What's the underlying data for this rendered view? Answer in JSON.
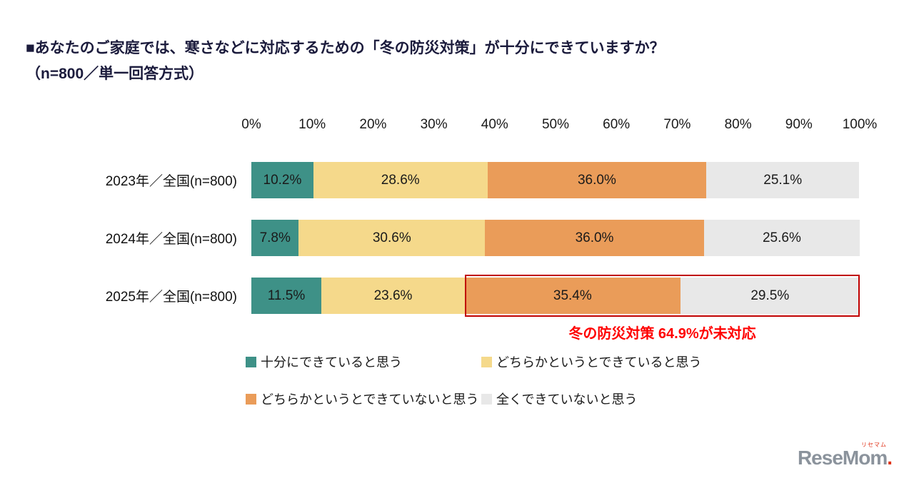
{
  "header": {
    "title": "■あなたのご家庭では、寒さなどに対応するための「冬の防災対策」が十分にできていますか？",
    "subtitle": "（n=800／単一回答方式）"
  },
  "chart_data": {
    "type": "bar",
    "stacked": true,
    "orientation": "horizontal",
    "xlim": [
      0,
      100
    ],
    "x_ticks": [
      "0%",
      "10%",
      "20%",
      "30%",
      "40%",
      "50%",
      "60%",
      "70%",
      "80%",
      "90%",
      "100%"
    ],
    "categories": [
      "2023年／全国(n=800)",
      "2024年／全国(n=800)",
      "2025年／全国(n=800)"
    ],
    "series": [
      {
        "name": "十分にできていると思う",
        "color": "#3e9187",
        "values": [
          10.2,
          7.8,
          11.5
        ]
      },
      {
        "name": "どちらかというとできていると思う",
        "color": "#f5d98b",
        "values": [
          28.6,
          30.6,
          23.6
        ]
      },
      {
        "name": "どちらかというとできていないと思う",
        "color": "#ea9c59",
        "values": [
          36.0,
          36.0,
          35.4
        ]
      },
      {
        "name": "全くできていないと思う",
        "color": "#e8e8e8",
        "values": [
          25.1,
          25.6,
          29.5
        ]
      }
    ],
    "legend_position": "bottom",
    "highlight": {
      "category_index": 2,
      "start_series_index": 2,
      "border_color": "#c00000",
      "label": "冬の防災対策 64.9%が未対応",
      "label_color": "#ff0000"
    }
  },
  "logo": {
    "text": "ReseMom",
    "dot": ".",
    "ruby": "リセマム"
  }
}
